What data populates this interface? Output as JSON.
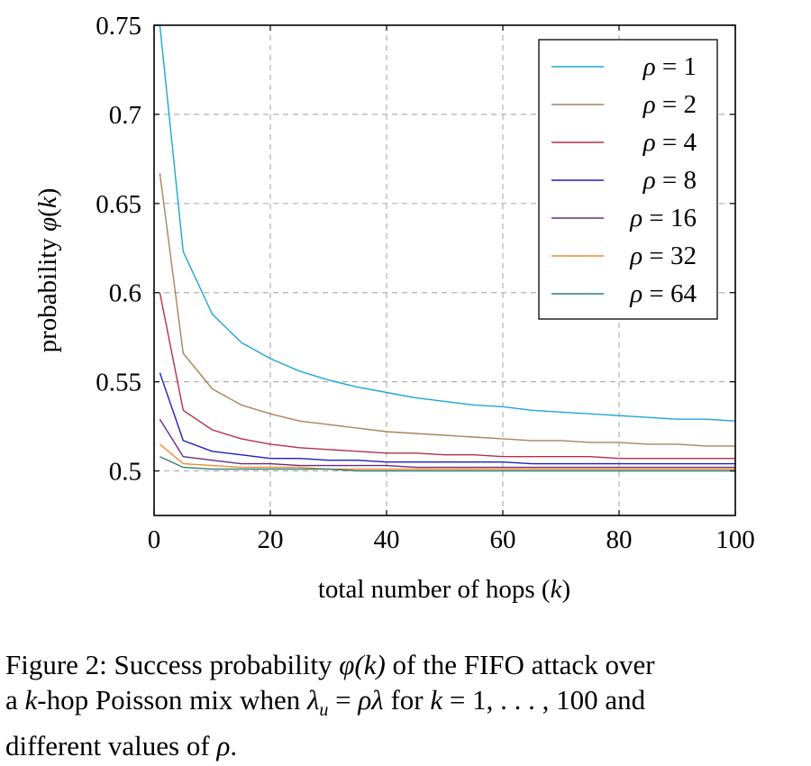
{
  "chart_data": {
    "type": "line",
    "xlabel": {
      "prefix": "total number of hops (",
      "var": "k",
      "suffix": ")"
    },
    "ylabel": {
      "prefix": "probability ",
      "func": "φ",
      "open": "(",
      "var": "k",
      "close": ")"
    },
    "xlim": [
      0,
      100
    ],
    "ylim": [
      0.475,
      0.75
    ],
    "xticks": [
      "0",
      "20",
      "40",
      "60",
      "80",
      "100"
    ],
    "xtick_values": [
      0,
      20,
      40,
      60,
      80,
      100
    ],
    "yticks": [
      "0.5",
      "0.55",
      "0.6",
      "0.65",
      "0.7",
      "0.75"
    ],
    "ytick_values": [
      0.5,
      0.55,
      0.6,
      0.65,
      0.7,
      0.75
    ],
    "grid": true,
    "legend_position": "top-right",
    "x": [
      1,
      5,
      10,
      15,
      20,
      25,
      30,
      35,
      40,
      45,
      50,
      55,
      60,
      65,
      70,
      75,
      80,
      85,
      90,
      95,
      100
    ],
    "series": [
      {
        "name": "ρ = 1",
        "rho": "1",
        "color": "#1ba6d6",
        "values": [
          0.75,
          0.623,
          0.588,
          0.572,
          0.563,
          0.556,
          0.551,
          0.547,
          0.544,
          0.541,
          0.539,
          0.537,
          0.536,
          0.534,
          0.533,
          0.532,
          0.531,
          0.53,
          0.529,
          0.529,
          0.528
        ]
      },
      {
        "name": "ρ = 2",
        "rho": "2",
        "color": "#a9845a",
        "values": [
          0.667,
          0.566,
          0.546,
          0.537,
          0.532,
          0.528,
          0.526,
          0.524,
          0.522,
          0.521,
          0.52,
          0.519,
          0.518,
          0.517,
          0.517,
          0.516,
          0.516,
          0.515,
          0.515,
          0.514,
          0.514
        ]
      },
      {
        "name": "ρ = 4",
        "rho": "4",
        "color": "#b5304a",
        "values": [
          0.6,
          0.534,
          0.523,
          0.518,
          0.515,
          0.513,
          0.512,
          0.511,
          0.51,
          0.51,
          0.509,
          0.509,
          0.508,
          0.508,
          0.508,
          0.508,
          0.507,
          0.507,
          0.507,
          0.507,
          0.507
        ]
      },
      {
        "name": "ρ = 8",
        "rho": "8",
        "color": "#1e1ebd",
        "values": [
          0.555,
          0.517,
          0.511,
          0.509,
          0.507,
          0.507,
          0.506,
          0.506,
          0.505,
          0.505,
          0.505,
          0.505,
          0.505,
          0.504,
          0.504,
          0.504,
          0.504,
          0.504,
          0.504,
          0.504,
          0.504
        ]
      },
      {
        "name": "ρ = 16",
        "rho": "16",
        "color": "#6a2a7f",
        "values": [
          0.529,
          0.508,
          0.506,
          0.504,
          0.504,
          0.503,
          0.503,
          0.503,
          0.503,
          0.502,
          0.502,
          0.502,
          0.502,
          0.502,
          0.502,
          0.502,
          0.502,
          0.502,
          0.502,
          0.502,
          0.502
        ]
      },
      {
        "name": "ρ = 32",
        "rho": "32",
        "color": "#f08c28",
        "values": [
          0.515,
          0.504,
          0.503,
          0.502,
          0.502,
          0.502,
          0.501,
          0.501,
          0.501,
          0.501,
          0.501,
          0.501,
          0.501,
          0.501,
          0.501,
          0.501,
          0.501,
          0.501,
          0.501,
          0.501,
          0.501
        ]
      },
      {
        "name": "ρ = 64",
        "rho": "64",
        "color": "#2f7f7a",
        "values": [
          0.508,
          0.502,
          0.501,
          0.501,
          0.501,
          0.501,
          0.501,
          0.5,
          0.5,
          0.5,
          0.5,
          0.5,
          0.5,
          0.5,
          0.5,
          0.5,
          0.5,
          0.5,
          0.5,
          0.5,
          0.5
        ]
      }
    ]
  },
  "caption": {
    "l1_a": "Figure 2: Success probability ",
    "l1_phi": "φ",
    "l1_pk": "(k)",
    "l1_b": " of the FIFO attack over",
    "l2_a": "a ",
    "l2_k": "k",
    "l2_b": "-hop Poisson mix when ",
    "l2_lam": "λ",
    "l2_u": "u",
    "l2_eq": " = ",
    "l2_rl": "ρλ",
    "l2_c": " for ",
    "l2_k2": "k",
    "l2_d": " = 1, . . . , 100 and",
    "l3_a": "different values of ",
    "l3_rho": "ρ",
    "l3_b": "."
  }
}
